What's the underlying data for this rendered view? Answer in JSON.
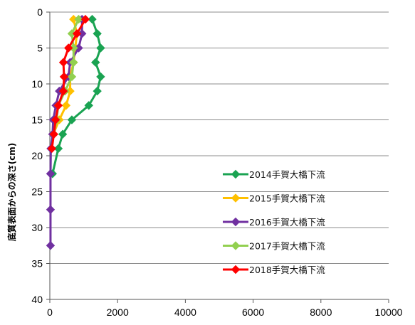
{
  "chart_data": {
    "type": "line",
    "title": "",
    "xlabel": "",
    "ylabel": "底質表面からの深さ(cm)",
    "xlim": [
      0,
      10000
    ],
    "ylim": [
      0,
      40
    ],
    "y_inverted": true,
    "x_ticks": [
      "0",
      "2000",
      "4000",
      "6000",
      "8000",
      "10000"
    ],
    "y_ticks": [
      "0",
      "5",
      "10",
      "15",
      "20",
      "25",
      "30",
      "35",
      "40"
    ],
    "grid": "horizontal",
    "legend_position": "right-middle",
    "series": [
      {
        "name": "2014手賀大橋下流",
        "color": "#1aa352",
        "points": [
          [
            1250,
            1
          ],
          [
            1400,
            3
          ],
          [
            1500,
            5
          ],
          [
            1350,
            7
          ],
          [
            1500,
            9
          ],
          [
            1400,
            11
          ],
          [
            1150,
            13
          ],
          [
            650,
            15
          ],
          [
            380,
            17
          ],
          [
            250,
            19
          ],
          [
            80,
            22.5
          ]
        ]
      },
      {
        "name": "2015手賀大橋下流",
        "color": "#ffc000",
        "points": [
          [
            700,
            1
          ],
          [
            800,
            3
          ],
          [
            750,
            5
          ],
          [
            700,
            7
          ],
          [
            600,
            9
          ],
          [
            600,
            11
          ],
          [
            480,
            13
          ],
          [
            280,
            15
          ],
          [
            100,
            17
          ]
        ]
      },
      {
        "name": "2016手賀大橋下流",
        "color": "#7030a0",
        "points": [
          [
            950,
            1
          ],
          [
            950,
            3
          ],
          [
            850,
            5
          ],
          [
            600,
            7
          ],
          [
            550,
            9
          ],
          [
            280,
            11
          ],
          [
            180,
            13
          ],
          [
            100,
            15
          ],
          [
            80,
            17
          ],
          [
            30,
            19
          ],
          [
            20,
            22.5
          ],
          [
            20,
            27.5
          ],
          [
            20,
            32.5
          ]
        ]
      },
      {
        "name": "2017手賀大橋下流",
        "color": "#92d050",
        "points": [
          [
            850,
            1
          ],
          [
            650,
            3
          ],
          [
            700,
            5
          ],
          [
            700,
            7
          ],
          [
            650,
            9
          ],
          [
            450,
            11
          ],
          [
            250,
            13
          ],
          [
            200,
            15
          ],
          [
            120,
            17
          ]
        ]
      },
      {
        "name": "2018手賀大橋下流",
        "color": "#ff0000",
        "points": [
          [
            1050,
            1
          ],
          [
            800,
            3
          ],
          [
            550,
            5
          ],
          [
            400,
            7
          ],
          [
            420,
            9
          ],
          [
            400,
            11
          ],
          [
            250,
            13
          ],
          [
            170,
            15
          ],
          [
            120,
            17
          ],
          [
            60,
            19
          ]
        ]
      }
    ]
  }
}
